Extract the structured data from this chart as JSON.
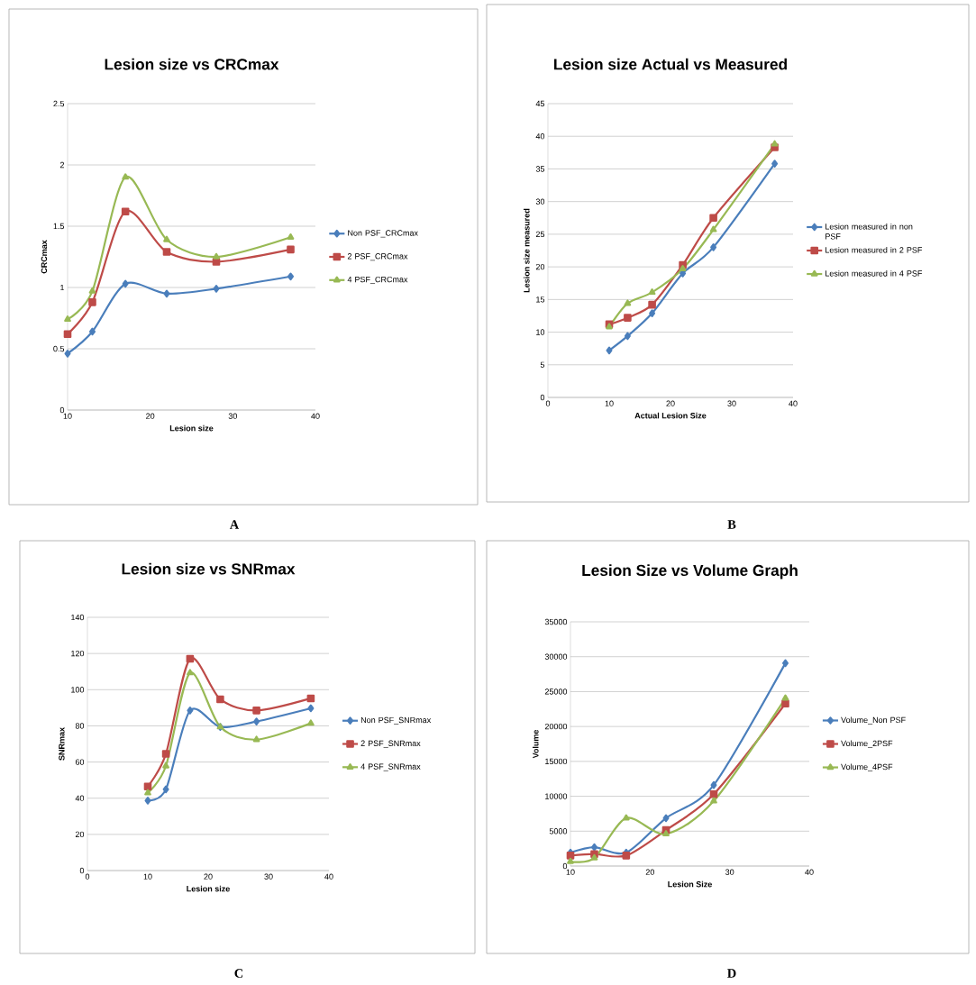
{
  "chart_data": [
    {
      "type": "line",
      "title": "Lesion size vs CRCmax",
      "xlabel": "Lesion size",
      "ylabel": "CRCmax",
      "x": [
        10,
        13,
        17,
        22,
        28,
        37
      ],
      "series": [
        {
          "name": "Non PSF_CRCmax",
          "color": "#4a7ebb",
          "marker": "diamond",
          "values": [
            0.46,
            0.64,
            1.03,
            0.95,
            0.99,
            1.09
          ]
        },
        {
          "name": "2 PSF_CRCmax",
          "color": "#be4b48",
          "marker": "square",
          "values": [
            0.62,
            0.88,
            1.62,
            1.29,
            1.21,
            1.31
          ]
        },
        {
          "name": "4 PSF_CRCmax",
          "color": "#98b954",
          "marker": "triangle",
          "values": [
            0.74,
            0.97,
            1.9,
            1.39,
            1.25,
            1.41
          ]
        }
      ],
      "xlim": [
        10,
        40
      ],
      "xticks": [
        10,
        20,
        30,
        40
      ],
      "ylim": [
        0,
        2.5
      ],
      "yticks": [
        0,
        0.5,
        1,
        1.5,
        2,
        2.5
      ],
      "grid": "y",
      "legend": "right",
      "annotations": [
        "A"
      ]
    },
    {
      "type": "line",
      "title": "Lesion size Actual vs Measured",
      "xlabel": "Actual Lesion Size",
      "ylabel": "Lesion size measured",
      "x": [
        10,
        13,
        17,
        22,
        27,
        37
      ],
      "series": [
        {
          "name": "Lesion measured in non PSF",
          "color": "#4a7ebb",
          "marker": "diamond",
          "values": [
            7.2,
            9.4,
            12.9,
            19.0,
            23.0,
            35.8
          ]
        },
        {
          "name": "Lesion measured in 2 PSF",
          "color": "#be4b48",
          "marker": "square",
          "values": [
            11.2,
            12.2,
            14.2,
            20.3,
            27.5,
            38.3
          ]
        },
        {
          "name": "Lesion measured in 4 PSF",
          "color": "#98b954",
          "marker": "triangle",
          "values": [
            10.8,
            14.4,
            16.1,
            19.7,
            25.7,
            38.8
          ]
        }
      ],
      "xlim": [
        0,
        40
      ],
      "xticks": [
        0,
        10,
        20,
        30,
        40
      ],
      "ylim": [
        0,
        45
      ],
      "yticks": [
        0,
        5,
        10,
        15,
        20,
        25,
        30,
        35,
        40,
        45
      ],
      "grid": "y",
      "legend": "right",
      "annotations": [
        "B"
      ]
    },
    {
      "type": "line",
      "title": "Lesion size vs SNRmax",
      "xlabel": "Lesion size",
      "ylabel": "SNRmax",
      "x": [
        10,
        13,
        17,
        22,
        28,
        37
      ],
      "series": [
        {
          "name": "Non PSF_SNRmax",
          "color": "#4a7ebb",
          "marker": "diamond",
          "values": [
            38.7,
            44.9,
            88.5,
            79.4,
            82.4,
            89.7
          ]
        },
        {
          "name": "2 PSF_SNRmax",
          "color": "#be4b48",
          "marker": "square",
          "values": [
            46.5,
            64.5,
            117.1,
            94.7,
            88.5,
            95.2
          ]
        },
        {
          "name": "4 PSF_SNRmax",
          "color": "#98b954",
          "marker": "triangle",
          "values": [
            42.9,
            57.8,
            109.3,
            79.4,
            72.4,
            81.4
          ]
        }
      ],
      "xlim": [
        0,
        40
      ],
      "xticks": [
        0,
        10,
        20,
        30,
        40
      ],
      "ylim": [
        0,
        140
      ],
      "yticks": [
        0,
        20,
        40,
        60,
        80,
        100,
        120,
        140
      ],
      "grid": "y",
      "legend": "right",
      "annotations": [
        "C"
      ]
    },
    {
      "type": "line",
      "title": "Lesion Size vs Volume Graph",
      "xlabel": "Lesion Size",
      "ylabel": "Volume",
      "x": [
        10,
        13,
        17,
        22,
        28,
        37
      ],
      "series": [
        {
          "name": "Volume_Non PSF",
          "color": "#4a7ebb",
          "marker": "diamond",
          "values": [
            1930,
            2700,
            1930,
            6870,
            11600,
            29080
          ]
        },
        {
          "name": "Volume_2PSF",
          "color": "#be4b48",
          "marker": "square",
          "values": [
            1500,
            1720,
            1500,
            5150,
            10300,
            23280
          ]
        },
        {
          "name": "Volume_4PSF",
          "color": "#98b954",
          "marker": "triangle",
          "values": [
            640,
            1160,
            6870,
            4600,
            9320,
            24050
          ]
        }
      ],
      "xlim": [
        10,
        40
      ],
      "xticks": [
        10,
        20,
        30,
        40
      ],
      "ylim": [
        0,
        35000
      ],
      "yticks": [
        0,
        5000,
        10000,
        15000,
        20000,
        25000,
        30000,
        35000
      ],
      "grid": "y",
      "legend": "right",
      "annotations": [
        "D"
      ]
    }
  ]
}
